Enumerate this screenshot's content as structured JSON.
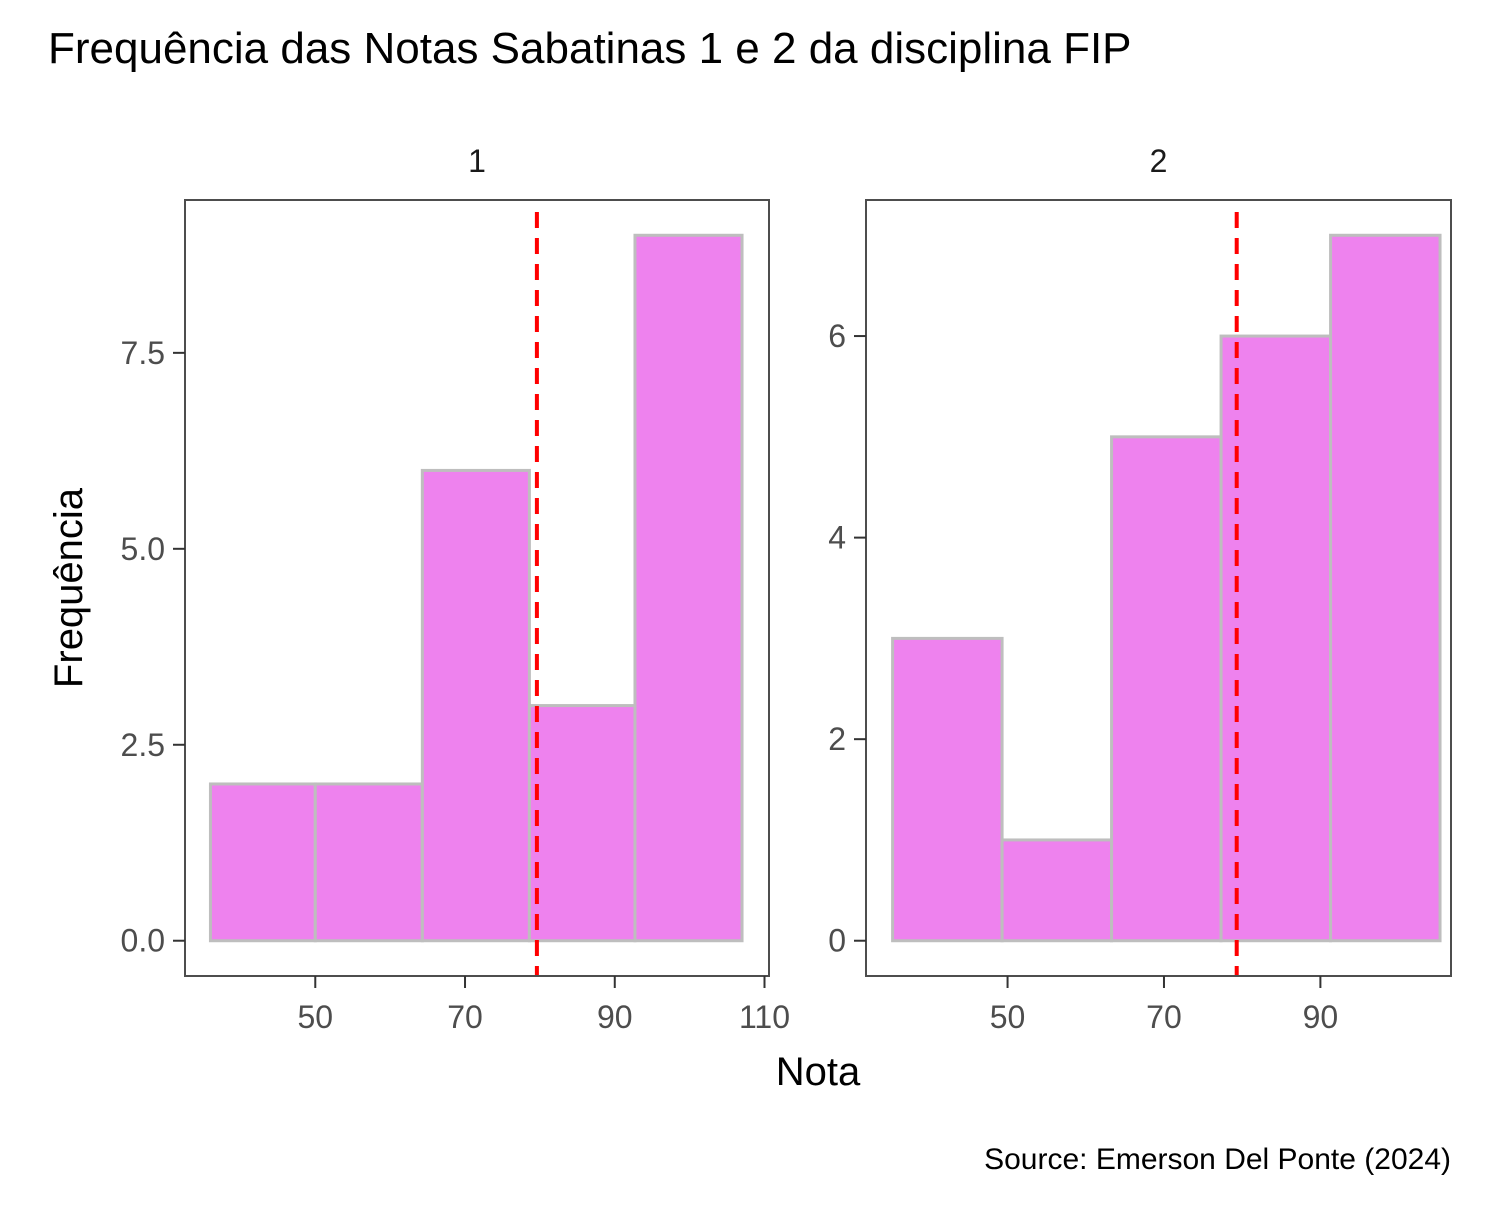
{
  "chart_data": {
    "type": "bar",
    "subtype": "histogram",
    "title": "Frequência das Notas Sabatinas 1 e 2 da disciplina FIP",
    "xlabel": "Nota",
    "ylabel": "Frequência",
    "caption": "Source: Emerson Del Ponte (2024)",
    "grid": false,
    "colors": {
      "bar_fill": "#EE82EE",
      "bar_border": "#BEBEBE",
      "reference_line": "#FF0000",
      "panel_border": "#4D4D4D"
    },
    "panels": [
      {
        "label": "1",
        "xlim": [
          32.6,
          110.6
        ],
        "ylim": [
          -0.45,
          9.45
        ],
        "xticks": [
          50,
          70,
          90,
          110
        ],
        "xtick_labels": [
          "50",
          "70",
          "90",
          "110"
        ],
        "yticks": [
          0,
          2.5,
          5,
          7.5
        ],
        "ytick_labels": [
          "0.0",
          "2.5",
          "5.0",
          "7.5"
        ],
        "bins": [
          {
            "x0": 36.0,
            "x1": 50.0,
            "count": 2
          },
          {
            "x0": 50.0,
            "x1": 64.3,
            "count": 2
          },
          {
            "x0": 64.3,
            "x1": 78.6,
            "count": 6
          },
          {
            "x0": 78.6,
            "x1": 92.7,
            "count": 3
          },
          {
            "x0": 92.7,
            "x1": 107.0,
            "count": 9
          }
        ],
        "reference_line_x": 79.6
      },
      {
        "label": "2",
        "xlim": [
          31.9,
          106.7
        ],
        "ylim": [
          -0.35,
          7.35
        ],
        "xticks": [
          50,
          70,
          90
        ],
        "xtick_labels": [
          "50",
          "70",
          "90"
        ],
        "yticks": [
          0,
          2,
          4,
          6
        ],
        "ytick_labels": [
          "0",
          "2",
          "4",
          "6"
        ],
        "bins": [
          {
            "x0": 35.3,
            "x1": 49.3,
            "count": 3
          },
          {
            "x0": 49.3,
            "x1": 63.3,
            "count": 1
          },
          {
            "x0": 63.3,
            "x1": 77.3,
            "count": 5
          },
          {
            "x0": 77.3,
            "x1": 91.3,
            "count": 6
          },
          {
            "x0": 91.3,
            "x1": 105.3,
            "count": 7
          }
        ],
        "reference_line_x": 79.3
      }
    ]
  }
}
